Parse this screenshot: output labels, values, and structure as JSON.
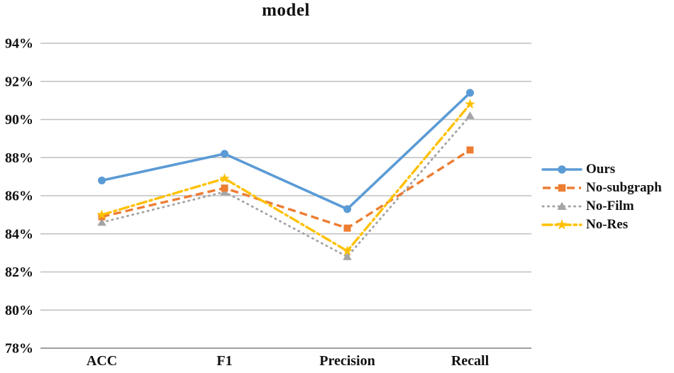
{
  "chart_data": {
    "type": "line",
    "title": "model",
    "categories": [
      "ACC",
      "F1",
      "Precision",
      "Recall"
    ],
    "y_ticks": [
      "94%",
      "92%",
      "90%",
      "88%",
      "86%",
      "84%",
      "82%",
      "80%",
      "78%"
    ],
    "ylim": [
      78,
      94
    ],
    "y_tick_step": 2,
    "grid": true,
    "legend_position": "right",
    "axis_text_color": "#111111",
    "gridline_color": "#bfbfbf",
    "axis_line_color": "#a0a0a0",
    "draw_order": [
      2,
      1,
      3,
      0
    ],
    "series": [
      {
        "name": "Ours",
        "color": "#5B9BD5",
        "marker": "circle",
        "line_style": "solid",
        "values": [
          86.8,
          88.2,
          85.3,
          91.4
        ]
      },
      {
        "name": "No-subgraph",
        "color": "#ED7D31",
        "marker": "square",
        "line_style": "dashed",
        "values": [
          84.9,
          86.4,
          84.3,
          88.4
        ]
      },
      {
        "name": "No-Film",
        "color": "#A5A5A5",
        "marker": "triangle",
        "line_style": "dotted",
        "values": [
          84.6,
          86.2,
          82.8,
          90.2
        ]
      },
      {
        "name": "No-Res",
        "color": "#FFC000",
        "marker": "star",
        "line_style": "dash-dot",
        "values": [
          85.0,
          86.9,
          83.1,
          90.8
        ]
      }
    ]
  }
}
